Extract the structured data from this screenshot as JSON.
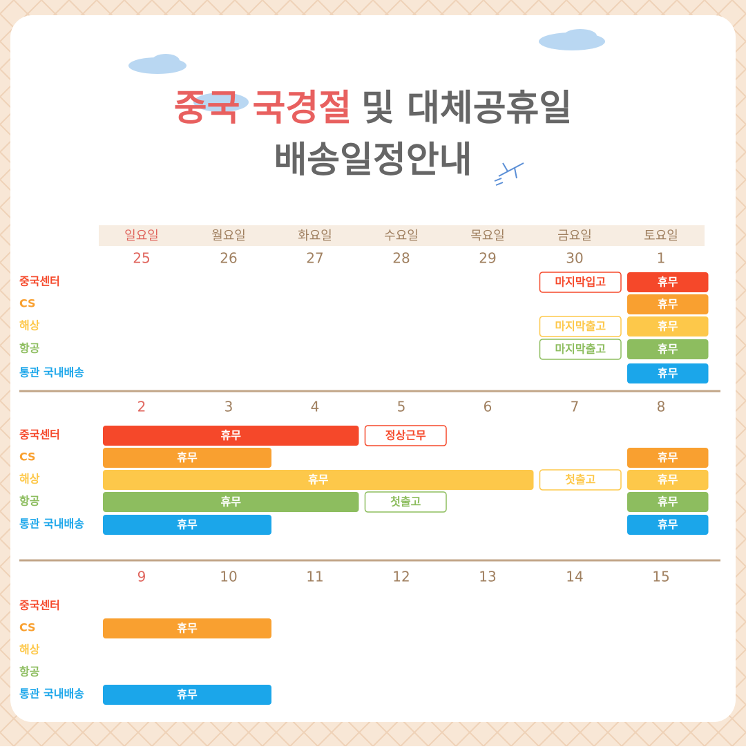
{
  "title": {
    "highlight": "중국 국경절",
    "rest": "및 대체공휴일",
    "line2": "배송일정안내"
  },
  "weekdays": [
    "일요일",
    "월요일",
    "화요일",
    "수요일",
    "목요일",
    "금요일",
    "토요일"
  ],
  "row_labels": [
    "중국센터",
    "CS",
    "해상",
    "항공",
    "통관 국내배송"
  ],
  "row_colors": [
    "#f5482a",
    "#f9a030",
    "#fdc84a",
    "#8dbd5f",
    "#1ba6ea"
  ],
  "weeks": [
    {
      "dates": [
        25,
        26,
        27,
        28,
        29,
        30,
        1
      ],
      "rows": [
        [
          {
            "start": 5,
            "span": 1,
            "text": "마지막입고",
            "style": "outline"
          },
          {
            "start": 6,
            "span": 1,
            "text": "휴무",
            "style": "fill"
          }
        ],
        [
          {
            "start": 6,
            "span": 1,
            "text": "휴무",
            "style": "fill"
          }
        ],
        [
          {
            "start": 5,
            "span": 1,
            "text": "마지막출고",
            "style": "outline"
          },
          {
            "start": 6,
            "span": 1,
            "text": "휴무",
            "style": "fill"
          }
        ],
        [
          {
            "start": 5,
            "span": 1,
            "text": "마지막출고",
            "style": "outline"
          },
          {
            "start": 6,
            "span": 1,
            "text": "휴무",
            "style": "fill"
          }
        ],
        [
          {
            "start": 6,
            "span": 1,
            "text": "휴무",
            "style": "fill"
          }
        ]
      ]
    },
    {
      "dates": [
        2,
        3,
        4,
        5,
        6,
        7,
        8
      ],
      "rows": [
        [
          {
            "start": 0,
            "span": 3,
            "text": "휴무",
            "style": "fill"
          },
          {
            "start": 3,
            "span": 1,
            "text": "정상근무",
            "style": "outline"
          }
        ],
        [
          {
            "start": 0,
            "span": 2,
            "text": "휴무",
            "style": "fill"
          },
          {
            "start": 6,
            "span": 1,
            "text": "휴무",
            "style": "fill"
          }
        ],
        [
          {
            "start": 0,
            "span": 5,
            "text": "휴무",
            "style": "fill"
          },
          {
            "start": 5,
            "span": 1,
            "text": "첫출고",
            "style": "outline"
          },
          {
            "start": 6,
            "span": 1,
            "text": "휴무",
            "style": "fill"
          }
        ],
        [
          {
            "start": 0,
            "span": 3,
            "text": "휴무",
            "style": "fill"
          },
          {
            "start": 3,
            "span": 1,
            "text": "첫출고",
            "style": "outline"
          },
          {
            "start": 6,
            "span": 1,
            "text": "휴무",
            "style": "fill"
          }
        ],
        [
          {
            "start": 0,
            "span": 2,
            "text": "휴무",
            "style": "fill"
          },
          {
            "start": 6,
            "span": 1,
            "text": "휴무",
            "style": "fill"
          }
        ]
      ]
    },
    {
      "dates": [
        9,
        10,
        11,
        12,
        13,
        14,
        15
      ],
      "rows": [
        [],
        [
          {
            "start": 0,
            "span": 2,
            "text": "휴무",
            "style": "fill"
          }
        ],
        [],
        [],
        [
          {
            "start": 0,
            "span": 2,
            "text": "휴무",
            "style": "fill"
          }
        ]
      ]
    }
  ]
}
